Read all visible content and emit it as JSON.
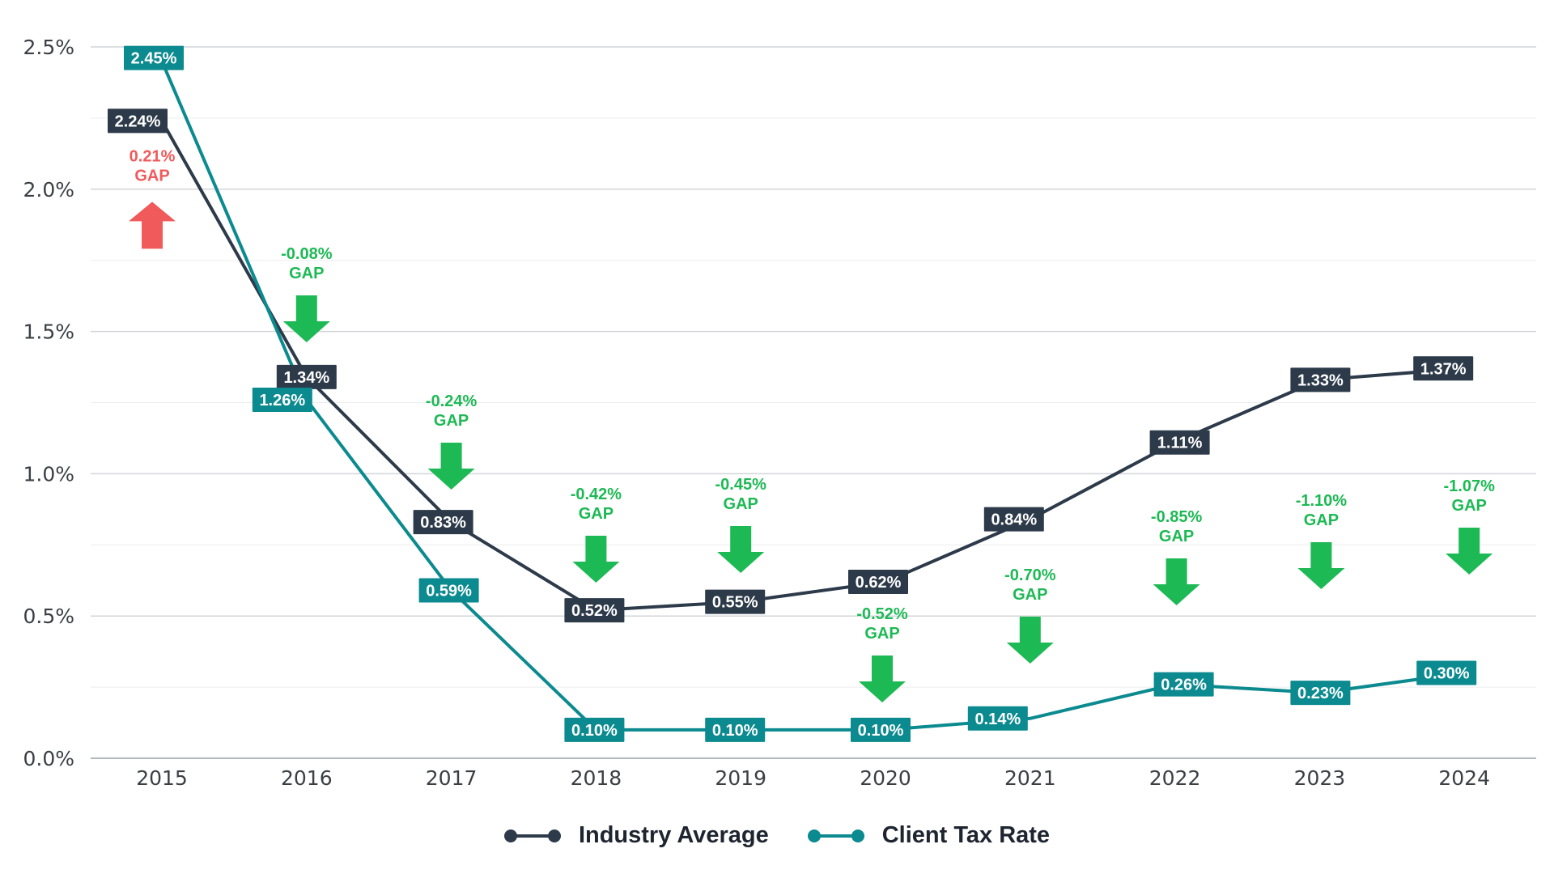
{
  "chart_data": {
    "type": "line",
    "title": "",
    "xlabel": "",
    "ylabel": "",
    "ylim": [
      0,
      2.5
    ],
    "y_ticks": [
      "0.0%",
      "0.5%",
      "1.0%",
      "1.5%",
      "2.0%",
      "2.5%"
    ],
    "y_tick_values": [
      0,
      0.5,
      1.0,
      1.5,
      2.0,
      2.5
    ],
    "grid": true,
    "legend_position": "bottom-center",
    "categories": [
      "2015",
      "2016",
      "2017",
      "2018",
      "2019",
      "2020",
      "2021",
      "2022",
      "2023",
      "2024"
    ],
    "series": [
      {
        "name": "Industry Average",
        "color": "#2d3a4a",
        "values": [
          2.24,
          1.34,
          0.83,
          0.52,
          0.55,
          0.62,
          0.84,
          1.11,
          1.33,
          1.37
        ],
        "labels": [
          "2.24%",
          "1.34%",
          "0.83%",
          "0.52%",
          "0.55%",
          "0.62%",
          "0.84%",
          "1.11%",
          "1.33%",
          "1.37%"
        ]
      },
      {
        "name": "Client Tax Rate",
        "color": "#0b8a8f",
        "values": [
          2.45,
          1.26,
          0.59,
          0.1,
          0.1,
          0.1,
          0.14,
          0.26,
          0.23,
          0.3
        ],
        "labels": [
          "2.45%",
          "1.26%",
          "0.59%",
          "0.10%",
          "0.10%",
          "0.10%",
          "0.14%",
          "0.26%",
          "0.23%",
          "0.30%"
        ]
      }
    ],
    "gap_annotations": [
      {
        "year": "2015",
        "value": "0.21%",
        "word": "GAP",
        "direction": "up",
        "color": "#f05a5a"
      },
      {
        "year": "2016",
        "value": "-0.08%",
        "word": "GAP",
        "direction": "down",
        "color": "#1db954"
      },
      {
        "year": "2017",
        "value": "-0.24%",
        "word": "GAP",
        "direction": "down",
        "color": "#1db954"
      },
      {
        "year": "2018",
        "value": "-0.42%",
        "word": "GAP",
        "direction": "down",
        "color": "#1db954"
      },
      {
        "year": "2019",
        "value": "-0.45%",
        "word": "GAP",
        "direction": "down",
        "color": "#1db954"
      },
      {
        "year": "2020",
        "value": "-0.52%",
        "word": "GAP",
        "direction": "down",
        "color": "#1db954"
      },
      {
        "year": "2021",
        "value": "-0.70%",
        "word": "GAP",
        "direction": "down",
        "color": "#1db954"
      },
      {
        "year": "2022",
        "value": "-0.85%",
        "word": "GAP",
        "direction": "down",
        "color": "#1db954"
      },
      {
        "year": "2023",
        "value": "-1.10%",
        "word": "GAP",
        "direction": "down",
        "color": "#1db954"
      },
      {
        "year": "2024",
        "value": "-1.07%",
        "word": "GAP",
        "direction": "down",
        "color": "#1db954"
      }
    ]
  },
  "legend": {
    "items": [
      {
        "label": "Industry Average",
        "color": "#2d3a4a"
      },
      {
        "label": "Client Tax Rate",
        "color": "#0b8a8f"
      }
    ]
  }
}
